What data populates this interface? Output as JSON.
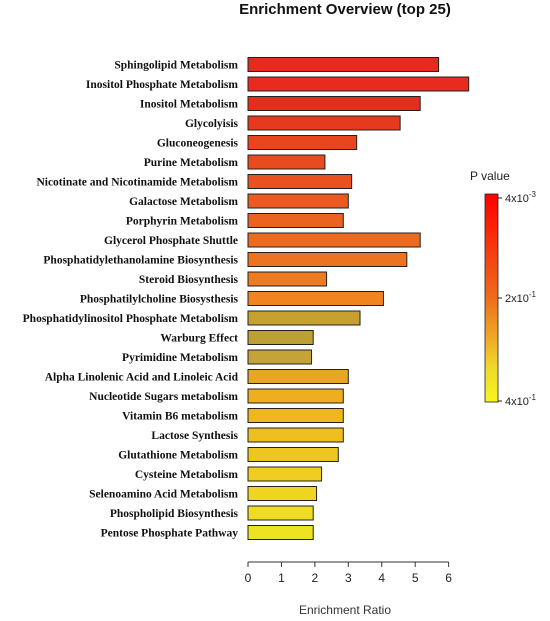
{
  "chart_data": {
    "type": "bar",
    "orientation": "horizontal",
    "title": "Enrichment Overview (top 25)",
    "xlabel": "Enrichment Ratio",
    "xlim": [
      0,
      6.4
    ],
    "xticks": [
      "0",
      "1",
      "2",
      "3",
      "4",
      "5",
      "6"
    ],
    "categories": [
      "Sphingolipid Metabolism",
      "Inositol Phosphate Metabolism",
      "Inositol Metabolism",
      "Glycolyisis",
      "Gluconeogenesis",
      "Purine Metabolism",
      "Nicotinate and Nicotinamide Metabolism",
      "Galactose Metabolism",
      "Porphyrin Metabolism",
      "Glycerol Phosphate Shuttle",
      "Phosphatidylethanolamine Biosynthesis",
      "Steroid Biosynthesis",
      "Phosphatilylcholine Biosysthesis",
      "Phosphatidylinositol Phosphate Metabolism",
      "Warburg Effect",
      "Pyrimidine Metabolism",
      "Alpha Linolenic Acid and Linoleic Acid",
      "Nucleotide Sugars metabolism",
      "Vitamin B6 metabolism",
      "Lactose Synthesis",
      "Glutathione Metabolism",
      "Cysteine Metabolism",
      "Selenoamino Acid Metabolism",
      "Phospholipid Biosynthesis",
      "Pentose Phosphate Pathway"
    ],
    "values": [
      5.7,
      6.6,
      5.15,
      4.55,
      3.25,
      2.3,
      3.1,
      3.0,
      2.85,
      5.15,
      4.75,
      2.35,
      4.05,
      3.35,
      1.95,
      1.9,
      3.0,
      2.85,
      2.85,
      2.85,
      2.7,
      2.2,
      2.05,
      1.95,
      1.95
    ],
    "colors": [
      "#e52a1e",
      "#e82a1f",
      "#e52d1f",
      "#e63a1f",
      "#e9451f",
      "#ea4a1f",
      "#ea5120",
      "#eb5a20",
      "#ec6220",
      "#ed6b20",
      "#ee7320",
      "#ee7b20",
      "#ef8420",
      "#c8a030",
      "#bca034",
      "#c4a436",
      "#e8a622",
      "#eeae20",
      "#eeb620",
      "#efbe20",
      "#eec620",
      "#efcd21",
      "#efd522",
      "#efdd23",
      "#ede323"
    ],
    "legend": {
      "title": "P value",
      "position": "right",
      "ticks": [
        "4x10-3",
        "2x10-1",
        "4x10-1"
      ],
      "gradient": [
        "#ff0000",
        "#ee6d1d",
        "#f0dc2c",
        "#f5f51e"
      ]
    }
  }
}
